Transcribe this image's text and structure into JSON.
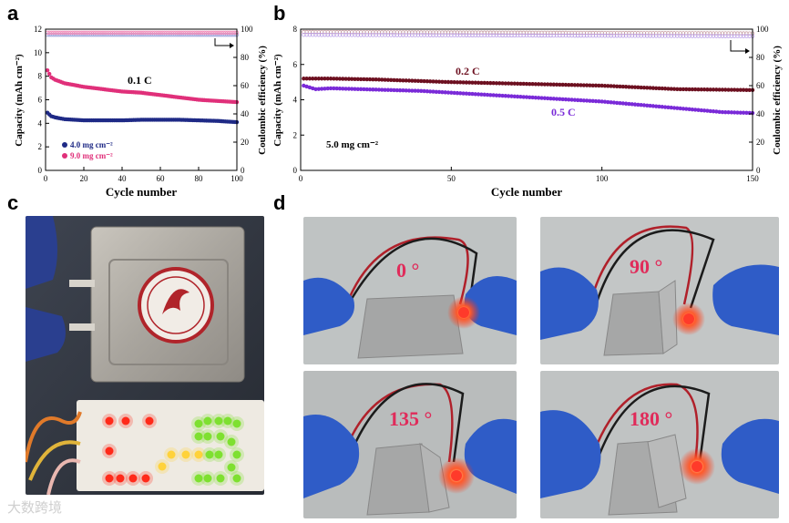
{
  "panels": {
    "a": "a",
    "b": "b",
    "c": "c",
    "d": "d"
  },
  "chart_data": [
    {
      "type": "scatter",
      "panel": "a",
      "xlabel": "Cycle number",
      "ylabel": "Capacity (mAh cm⁻²)",
      "y2label": "Coulombic efficiency (%)",
      "xlim": [
        0,
        100
      ],
      "ylim": [
        0,
        12
      ],
      "y2lim": [
        0,
        100
      ],
      "xticks": [
        0,
        20,
        40,
        60,
        80,
        100
      ],
      "yticks": [
        0,
        2,
        4,
        6,
        8,
        10,
        12
      ],
      "y2ticks": [
        0,
        20,
        40,
        60,
        80,
        100
      ],
      "annotation": "0.1 C",
      "series": [
        {
          "name": "4.0 mg cm⁻²",
          "color": "#1f2a86",
          "axis": "y",
          "x": [
            1,
            3,
            5,
            10,
            20,
            30,
            40,
            50,
            60,
            70,
            80,
            90,
            100
          ],
          "values": [
            4.9,
            4.6,
            4.5,
            4.35,
            4.25,
            4.25,
            4.25,
            4.3,
            4.3,
            4.3,
            4.25,
            4.2,
            4.1
          ]
        },
        {
          "name": "9.0 mg cm⁻²",
          "color": "#e0307a",
          "axis": "y",
          "x": [
            1,
            3,
            5,
            10,
            20,
            30,
            40,
            50,
            60,
            70,
            80,
            90,
            100
          ],
          "values": [
            8.5,
            7.9,
            7.7,
            7.4,
            7.1,
            6.9,
            6.7,
            6.6,
            6.4,
            6.2,
            6.0,
            5.9,
            5.8
          ]
        },
        {
          "name": "CE 4.0",
          "color": "#9a9fd8",
          "axis": "y2",
          "x": [
            1,
            100
          ],
          "values": [
            96,
            96
          ]
        },
        {
          "name": "CE 9.0",
          "color": "#f08bb8",
          "axis": "y2",
          "x": [
            1,
            100
          ],
          "values": [
            97.5,
            97.5
          ]
        }
      ]
    },
    {
      "type": "scatter",
      "panel": "b",
      "xlabel": "Cycle number",
      "ylabel": "Capacity (mAh cm⁻²)",
      "y2label": "Coulombic efficiency (%)",
      "xlim": [
        0,
        150
      ],
      "ylim": [
        0,
        8
      ],
      "y2lim": [
        0,
        100
      ],
      "xticks": [
        0,
        50,
        100,
        150
      ],
      "yticks": [
        0,
        2,
        4,
        6,
        8
      ],
      "y2ticks": [
        0,
        20,
        40,
        60,
        80,
        100
      ],
      "annotation": "5.0 mg cm⁻²",
      "series": [
        {
          "name": "0.2 C",
          "color": "#6d1020",
          "axis": "y",
          "x": [
            1,
            10,
            25,
            50,
            75,
            100,
            125,
            150
          ],
          "values": [
            5.2,
            5.2,
            5.15,
            5.0,
            4.9,
            4.8,
            4.6,
            4.55
          ]
        },
        {
          "name": "0.5 C",
          "color": "#7a2bd8",
          "axis": "y",
          "x": [
            1,
            5,
            10,
            20,
            40,
            50,
            60,
            80,
            100,
            120,
            140,
            150
          ],
          "values": [
            4.8,
            4.6,
            4.65,
            4.6,
            4.5,
            4.4,
            4.3,
            4.1,
            3.9,
            3.6,
            3.3,
            3.25
          ]
        },
        {
          "name": "CE 0.2 C",
          "color": "#c8a0a6",
          "axis": "y2",
          "x": [
            1,
            150
          ],
          "values": [
            98,
            97
          ]
        },
        {
          "name": "CE 0.5 C",
          "color": "#b99ce6",
          "axis": "y2",
          "x": [
            1,
            150
          ],
          "values": [
            96,
            95
          ]
        }
      ]
    }
  ],
  "photo_d": {
    "angles": [
      "0 °",
      "90 °",
      "135 °",
      "180 °"
    ],
    "angle_color": "#e02b5a"
  },
  "watermark": "大数跨境"
}
